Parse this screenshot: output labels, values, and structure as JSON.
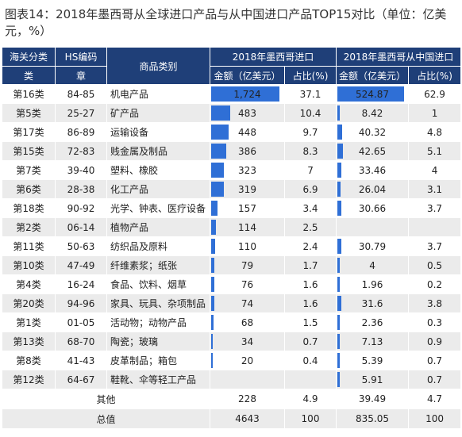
{
  "title": "图表14：2018年墨西哥从全球进口产品与从中国进口产品TOP15对比（单位：亿美元，%）",
  "headers": {
    "customs_class_top": "海关分类",
    "customs_class_bottom": "类",
    "hs_code_top": "HS编码",
    "hs_code_bottom": "章",
    "category": "商品类别",
    "global_group": "2018年墨西哥进口",
    "china_group": "2018年墨西哥从中国进口",
    "amount": "金额（亿美元）",
    "share": "占比(%)"
  },
  "colors": {
    "header_bg": "#1f3f78",
    "bar": "#2f6fd6",
    "row_alt": "#ebebeb"
  },
  "rows": [
    {
      "cls": "第16类",
      "hs": "84-85",
      "cat": "机电产品",
      "g_amt": "1,724",
      "g_val": 1724,
      "g_pct": "37.1",
      "c_amt": "524.87",
      "c_val": 524.87,
      "c_pct": "62.9"
    },
    {
      "cls": "第5类",
      "hs": "25-27",
      "cat": "矿产品",
      "g_amt": "483",
      "g_val": 483,
      "g_pct": "10.4",
      "c_amt": "8.42",
      "c_val": 8.42,
      "c_pct": "1"
    },
    {
      "cls": "第17类",
      "hs": "86-89",
      "cat": "运输设备",
      "g_amt": "448",
      "g_val": 448,
      "g_pct": "9.7",
      "c_amt": "40.32",
      "c_val": 40.32,
      "c_pct": "4.8"
    },
    {
      "cls": "第15类",
      "hs": "72-83",
      "cat": "贱金属及制品",
      "g_amt": "386",
      "g_val": 386,
      "g_pct": "8.3",
      "c_amt": "42.65",
      "c_val": 42.65,
      "c_pct": "5.1"
    },
    {
      "cls": "第7类",
      "hs": "39-40",
      "cat": "塑料、橡胶",
      "g_amt": "323",
      "g_val": 323,
      "g_pct": "7",
      "c_amt": "33.46",
      "c_val": 33.46,
      "c_pct": "4"
    },
    {
      "cls": "第6类",
      "hs": "28-38",
      "cat": "化工产品",
      "g_amt": "319",
      "g_val": 319,
      "g_pct": "6.9",
      "c_amt": "26.04",
      "c_val": 26.04,
      "c_pct": "3.1"
    },
    {
      "cls": "第18类",
      "hs": "90-92",
      "cat": "光学、钟表、医疗设备",
      "g_amt": "157",
      "g_val": 157,
      "g_pct": "3.4",
      "c_amt": "30.66",
      "c_val": 30.66,
      "c_pct": "3.7"
    },
    {
      "cls": "第2类",
      "hs": "06-14",
      "cat": "植物产品",
      "g_amt": "114",
      "g_val": 114,
      "g_pct": "2.5",
      "c_amt": "",
      "c_val": 0,
      "c_pct": ""
    },
    {
      "cls": "第11类",
      "hs": "50-63",
      "cat": "纺织品及原料",
      "g_amt": "110",
      "g_val": 110,
      "g_pct": "2.4",
      "c_amt": "30.79",
      "c_val": 30.79,
      "c_pct": "3.7"
    },
    {
      "cls": "第10类",
      "hs": "47-49",
      "cat": "纤维素浆；纸张",
      "g_amt": "79",
      "g_val": 79,
      "g_pct": "1.7",
      "c_amt": "4",
      "c_val": 4,
      "c_pct": "0.5"
    },
    {
      "cls": "第4类",
      "hs": "16-24",
      "cat": "食品、饮料、烟草",
      "g_amt": "76",
      "g_val": 76,
      "g_pct": "1.6",
      "c_amt": "1.96",
      "c_val": 1.96,
      "c_pct": "0.2"
    },
    {
      "cls": "第20类",
      "hs": "94-96",
      "cat": "家具、玩具、杂项制品",
      "g_amt": "74",
      "g_val": 74,
      "g_pct": "1.6",
      "c_amt": "31.6",
      "c_val": 31.6,
      "c_pct": "3.8"
    },
    {
      "cls": "第1类",
      "hs": "01-05",
      "cat": "活动物；动物产品",
      "g_amt": "68",
      "g_val": 68,
      "g_pct": "1.5",
      "c_amt": "2.36",
      "c_val": 2.36,
      "c_pct": "0.3"
    },
    {
      "cls": "第13类",
      "hs": "68-70",
      "cat": "陶瓷；玻璃",
      "g_amt": "34",
      "g_val": 34,
      "g_pct": "0.7",
      "c_amt": "7.13",
      "c_val": 7.13,
      "c_pct": "0.9"
    },
    {
      "cls": "第8类",
      "hs": "41-43",
      "cat": "皮革制品；箱包",
      "g_amt": "20",
      "g_val": 20,
      "g_pct": "0.4",
      "c_amt": "5.39",
      "c_val": 5.39,
      "c_pct": "0.7"
    },
    {
      "cls": "第12类",
      "hs": "64-67",
      "cat": "鞋靴、伞等轻工产品",
      "g_amt": "",
      "g_val": 0,
      "g_pct": "",
      "c_amt": "5.91",
      "c_val": 5.91,
      "c_pct": "0.7"
    }
  ],
  "other": {
    "label": "其他",
    "g_amt": "228",
    "g_pct": "4.9",
    "c_amt": "39.49",
    "c_pct": "4.7"
  },
  "total": {
    "label": "总值",
    "g_amt": "4643",
    "g_pct": "100",
    "c_amt": "835.05",
    "c_pct": "100"
  }
}
